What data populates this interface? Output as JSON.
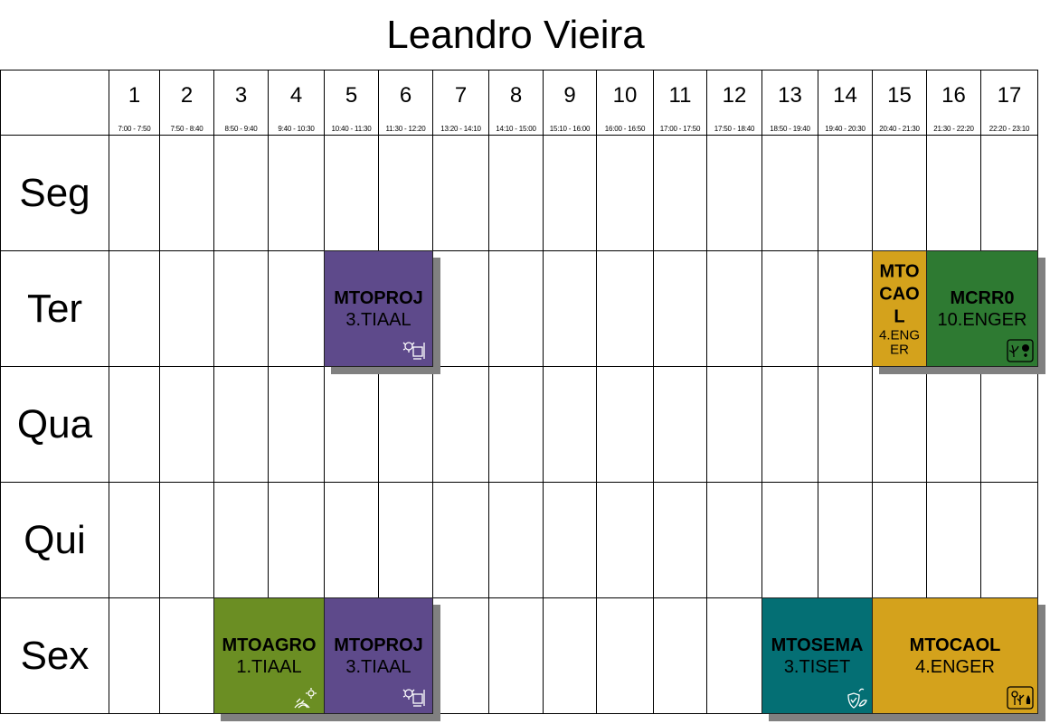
{
  "title": "Leandro Vieira",
  "periods": [
    {
      "num": "1",
      "time": "7:00 - 7:50"
    },
    {
      "num": "2",
      "time": "7:50 - 8:40"
    },
    {
      "num": "3",
      "time": "8:50 - 9:40"
    },
    {
      "num": "4",
      "time": "9:40 - 10:30"
    },
    {
      "num": "5",
      "time": "10:40 - 11:30"
    },
    {
      "num": "6",
      "time": "11:30 - 12:20"
    },
    {
      "num": "7",
      "time": "13:20 - 14:10"
    },
    {
      "num": "8",
      "time": "14:10 - 15:00"
    },
    {
      "num": "9",
      "time": "15:10 - 16:00"
    },
    {
      "num": "10",
      "time": "16:00 - 16:50"
    },
    {
      "num": "11",
      "time": "17:00 - 17:50"
    },
    {
      "num": "12",
      "time": "17:50 - 18:40"
    },
    {
      "num": "13",
      "time": "18:50 - 19:40"
    },
    {
      "num": "14",
      "time": "19:40 - 20:30"
    },
    {
      "num": "15",
      "time": "20:40 - 21:30"
    },
    {
      "num": "16",
      "time": "21:30 - 22:20"
    },
    {
      "num": "17",
      "time": "22:20 - 23:10"
    }
  ],
  "days": [
    "Seg",
    "Ter",
    "Qua",
    "Qui",
    "Sex"
  ],
  "classes": [
    {
      "code": "MTOPROJ",
      "group": "3.TIAAL",
      "day": 1,
      "start": 5,
      "span": 2,
      "color": "#5e4a8b",
      "icon": "design-tools-icon",
      "narrow": false
    },
    {
      "code": "MTOCAOL",
      "group": "4.ENGER",
      "day": 1,
      "start": 15,
      "span": 1,
      "color": "#d4a21c",
      "icon": "",
      "narrow": true
    },
    {
      "code": "MCRR0",
      "group": "10.ENGER",
      "day": 1,
      "start": 16,
      "span": 2,
      "color": "#2e7a32",
      "icon": "plants-icon",
      "narrow": false
    },
    {
      "code": "MTOAGRO",
      "group": "1.TIAAL",
      "day": 4,
      "start": 3,
      "span": 2,
      "color": "#6b8e23",
      "icon": "farm-field-icon",
      "narrow": false
    },
    {
      "code": "MTOPROJ",
      "group": "3.TIAAL",
      "day": 4,
      "start": 5,
      "span": 2,
      "color": "#5e4a8b",
      "icon": "design-tools-icon",
      "narrow": false
    },
    {
      "code": "MTOSEMA",
      "group": "3.TISET",
      "day": 4,
      "start": 13,
      "span": 2,
      "color": "#046f74",
      "icon": "plant-shield-icon",
      "narrow": false
    },
    {
      "code": "MTOCAOL",
      "group": "4.ENGER",
      "day": 4,
      "start": 15,
      "span": 3,
      "color": "#d4a21c",
      "icon": "plants-box-icon",
      "narrow": false
    }
  ]
}
